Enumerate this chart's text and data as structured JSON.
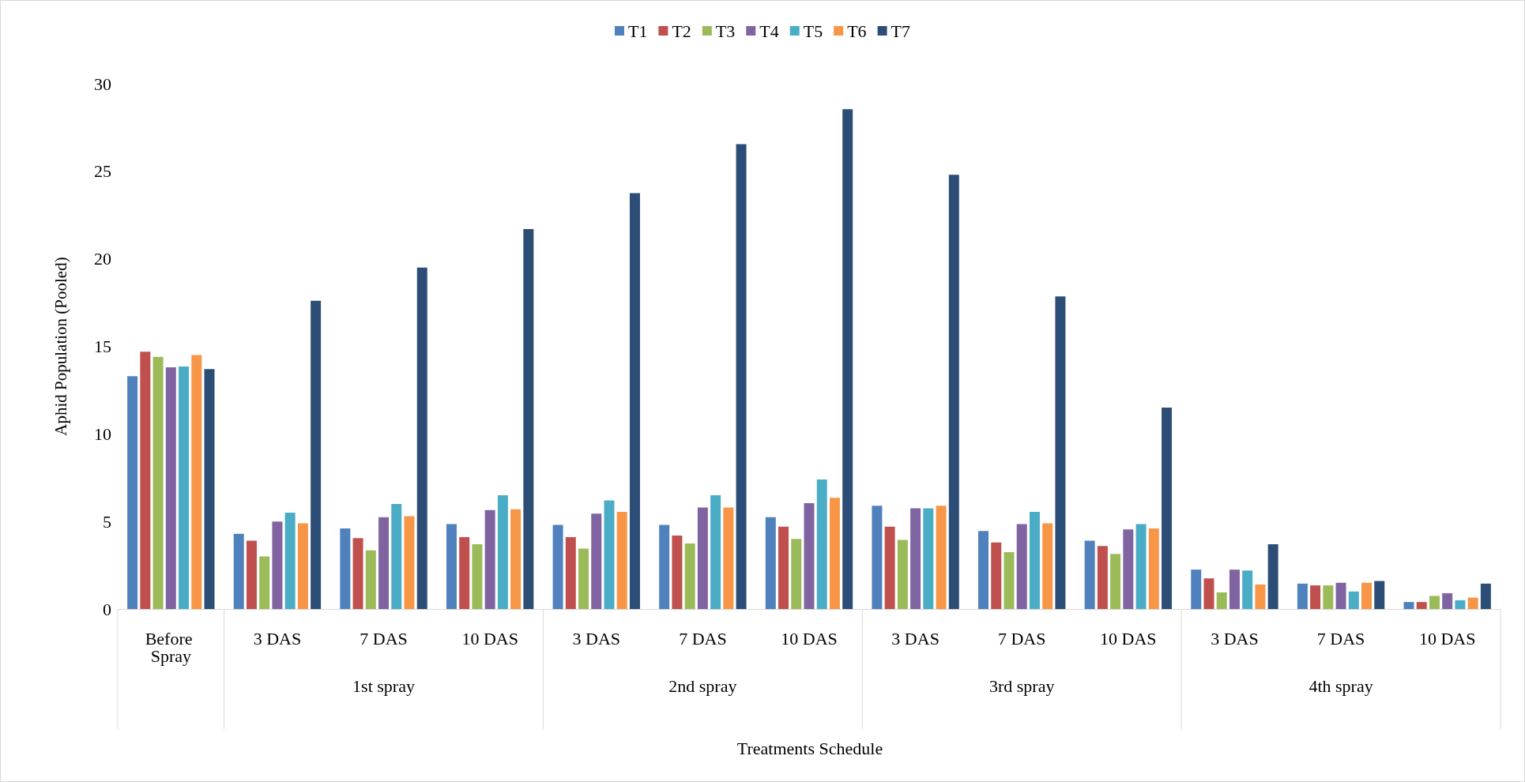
{
  "chart_data": {
    "type": "bar",
    "xlabel": "Treatments Schedule",
    "ylabel": "Aphid Population (Pooled)",
    "categories": [
      "Before Spray",
      "3 DAS",
      "7 DAS",
      "10 DAS",
      "3 DAS",
      "7 DAS",
      "10 DAS",
      "3 DAS",
      "7 DAS",
      "10 DAS",
      "3 DAS",
      "7 DAS",
      "10 DAS"
    ],
    "annotations": [
      "1st spray",
      "2nd spray",
      "3rd spray",
      "4th spray"
    ],
    "series": [
      {
        "name": "T1",
        "color": "#4f81bd",
        "values": [
          13.3,
          4.3,
          4.6,
          4.85,
          4.8,
          4.8,
          5.25,
          5.9,
          4.45,
          3.9,
          2.25,
          1.45,
          0.4
        ]
      },
      {
        "name": "T2",
        "color": "#c0504d",
        "values": [
          14.7,
          3.9,
          4.05,
          4.1,
          4.1,
          4.2,
          4.7,
          4.7,
          3.8,
          3.6,
          1.75,
          1.35,
          0.4
        ]
      },
      {
        "name": "T3",
        "color": "#9bbb59",
        "values": [
          14.4,
          3.0,
          3.35,
          3.7,
          3.45,
          3.75,
          4.0,
          3.95,
          3.25,
          3.15,
          0.95,
          1.35,
          0.75
        ]
      },
      {
        "name": "T4",
        "color": "#8064a2",
        "values": [
          13.8,
          5.0,
          5.25,
          5.65,
          5.45,
          5.8,
          6.05,
          5.75,
          4.85,
          4.55,
          2.25,
          1.5,
          0.9
        ]
      },
      {
        "name": "T5",
        "color": "#4bacc6",
        "values": [
          13.85,
          5.5,
          6.0,
          6.5,
          6.2,
          6.5,
          7.4,
          5.75,
          5.55,
          4.85,
          2.2,
          1.0,
          0.5
        ]
      },
      {
        "name": "T6",
        "color": "#f79646",
        "values": [
          14.5,
          4.9,
          5.3,
          5.7,
          5.55,
          5.8,
          6.35,
          5.9,
          4.9,
          4.6,
          1.4,
          1.5,
          0.65
        ]
      },
      {
        "name": "T7",
        "color": "#2c4d75",
        "values": [
          13.7,
          17.6,
          19.5,
          21.7,
          23.75,
          26.55,
          28.55,
          24.8,
          17.85,
          11.5,
          3.7,
          1.6,
          1.45
        ]
      }
    ],
    "ylim": [
      0,
      30
    ],
    "yticks": [
      0,
      5,
      10,
      15,
      20,
      25,
      30
    ],
    "grid": false,
    "legend": "top"
  }
}
